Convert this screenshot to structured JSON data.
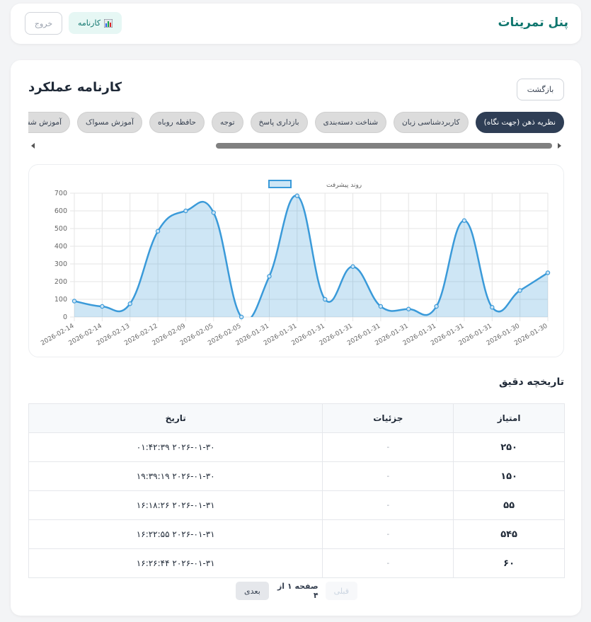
{
  "header": {
    "title": "پنل تمرینات",
    "report_button": "کارنامه",
    "logout_button": "خروج"
  },
  "page": {
    "title": "کارنامه عملکرد",
    "back_button": "بازگشت"
  },
  "tabs": [
    "نظریه ذهن (جهت نگاه)",
    "کاربردشناسی زبان",
    "شناخت دسته‌بندی",
    "بازداری پاسخ",
    "توجه",
    "حافظه روباه",
    "آموزش مسواک",
    "آموزش شستن"
  ],
  "chart_data": {
    "type": "line",
    "categories": [
      "2026-02-14",
      "2026-02-14",
      "2026-02-13",
      "2026-02-12",
      "2026-02-09",
      "2026-02-05",
      "2026-02-05",
      "2026-01-31",
      "2026-01-31",
      "2026-01-31",
      "2026-01-31",
      "2026-01-31",
      "2026-01-31",
      "2026-01-31",
      "2026-01-31",
      "2026-01-31",
      "2026-01-30",
      "2026-01-30"
    ],
    "series": [
      {
        "name": "روند پیشرفت",
        "color": "#3a9ad9",
        "values": [
          90,
          60,
          75,
          485,
          600,
          590,
          0,
          230,
          685,
          100,
          285,
          60,
          45,
          60,
          545,
          55,
          150,
          250
        ]
      }
    ],
    "ylim": [
      0,
      700
    ],
    "yticks": [
      0,
      100,
      200,
      300,
      400,
      500,
      600,
      700
    ],
    "grid": true,
    "legend": "top"
  },
  "history": {
    "title": "تاریخچه دقیق",
    "columns": [
      "امتیاز",
      "جزئیات",
      "تاریخ"
    ],
    "rows": [
      [
        "۲۵۰",
        "-",
        "۲۰۲۶-۰۱-۳۰ ۰۱:۴۲:۳۹"
      ],
      [
        "۱۵۰",
        "-",
        "۲۰۲۶-۰۱-۳۰ ۱۹:۳۹:۱۹"
      ],
      [
        "۵۵",
        "-",
        "۲۰۲۶-۰۱-۳۱ ۱۶:۱۸:۲۶"
      ],
      [
        "۵۴۵",
        "-",
        "۲۰۲۶-۰۱-۳۱ ۱۶:۲۲:۵۵"
      ],
      [
        "۶۰",
        "-",
        "۲۰۲۶-۰۱-۳۱ ۱۶:۲۶:۴۴"
      ]
    ]
  },
  "pagination": {
    "previous": "قبلی",
    "status": "صفحه ۱ از ۴",
    "next": "بعدی"
  }
}
